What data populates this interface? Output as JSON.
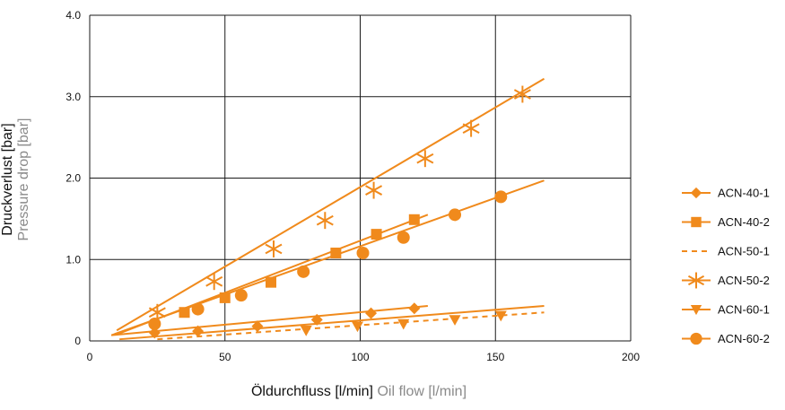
{
  "chart_data": {
    "type": "scatter",
    "xlabel_de": "Öldurchfluss [l/min]",
    "xlabel_en": "Oil flow [l/min]",
    "ylabel_de": "Druckverlust [bar]",
    "ylabel_en": "Pressure drop [bar]",
    "xlim": [
      0,
      200
    ],
    "ylim": [
      0,
      4.0
    ],
    "xticks": [
      "0",
      "50",
      "100",
      "150",
      "200"
    ],
    "yticks": [
      "0",
      "1.0",
      "2.0",
      "3.0",
      "4.0"
    ],
    "grid": true,
    "legend_position": "right",
    "color": "#F08A1C",
    "series": [
      {
        "name": "ACN-40-1",
        "marker": "diamond",
        "line_style": "solid",
        "x": [
          24,
          40,
          62,
          84,
          104,
          120
        ],
        "y": [
          0.1,
          0.12,
          0.18,
          0.26,
          0.34,
          0.4
        ],
        "fit": [
          [
            8,
            0.07
          ],
          [
            125,
            0.43
          ]
        ]
      },
      {
        "name": "ACN-40-2",
        "marker": "square",
        "line_style": "solid",
        "x": [
          35,
          50,
          67,
          91,
          106,
          120
        ],
        "y": [
          0.35,
          0.53,
          0.72,
          1.08,
          1.31,
          1.49
        ],
        "fit": [
          [
            10,
            0.08
          ],
          [
            125,
            1.55
          ]
        ]
      },
      {
        "name": "ACN-50-1",
        "marker": "none",
        "line_style": "dashed",
        "x": [],
        "y": [],
        "fit": [
          [
            25,
            0.02
          ],
          [
            168,
            0.35
          ]
        ]
      },
      {
        "name": "ACN-50-2",
        "marker": "asterisk",
        "line_style": "solid",
        "x": [
          25,
          46,
          68,
          87,
          105,
          124,
          141,
          160
        ],
        "y": [
          0.35,
          0.73,
          1.13,
          1.48,
          1.85,
          2.24,
          2.61,
          3.03
        ],
        "fit": [
          [
            10,
            0.13
          ],
          [
            168,
            3.22
          ]
        ]
      },
      {
        "name": "ACN-60-1",
        "marker": "triangle-down",
        "line_style": "solid",
        "x": [
          80,
          99,
          116,
          135,
          152
        ],
        "y": [
          0.13,
          0.18,
          0.21,
          0.26,
          0.31
        ],
        "fit": [
          [
            11,
            0.02
          ],
          [
            168,
            0.43
          ]
        ]
      },
      {
        "name": "ACN-60-2",
        "marker": "circle",
        "line_style": "solid",
        "x": [
          24,
          40,
          56,
          79,
          101,
          116,
          135,
          152
        ],
        "y": [
          0.21,
          0.39,
          0.56,
          0.85,
          1.08,
          1.27,
          1.55,
          1.77
        ],
        "fit": [
          [
            8,
            0.07
          ],
          [
            168,
            1.97
          ]
        ]
      }
    ]
  }
}
